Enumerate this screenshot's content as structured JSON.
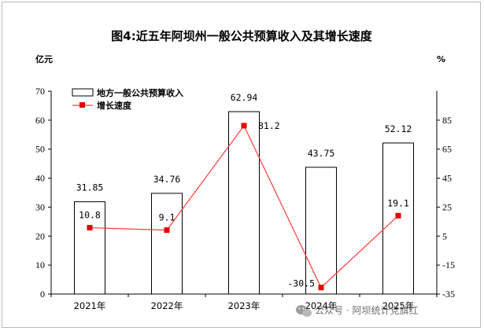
{
  "chart_data": {
    "type": "bar+line",
    "title": "图4:近五年阿坝州一般公共预算收入及其增长速度",
    "left_axis_unit": "亿元",
    "right_axis_unit": "%",
    "categories": [
      "2021年",
      "2022年",
      "2023年",
      "2024年",
      "2025年"
    ],
    "left_ylim": [
      0,
      70
    ],
    "left_ticks": [
      0,
      10,
      20,
      30,
      40,
      50,
      60,
      70
    ],
    "right_ylim": [
      -35,
      105
    ],
    "right_ticks": [
      -35,
      -15,
      5,
      25,
      45,
      65,
      85
    ],
    "grid": false,
    "legend_position": "top-left",
    "series": [
      {
        "name": "地方一般公共预算收入",
        "type": "bar",
        "axis": "left",
        "values": [
          31.85,
          34.76,
          62.94,
          43.75,
          52.12
        ],
        "labels": [
          "31.85",
          "34.76",
          "62.94",
          "43.75",
          "52.12"
        ],
        "fill": "#ffffff",
        "stroke": "#000000"
      },
      {
        "name": "增长速度",
        "type": "line",
        "axis": "right",
        "values": [
          10.8,
          9.1,
          81.2,
          -30.5,
          19.1
        ],
        "labels": [
          "10.8",
          "9.1",
          "81.2",
          "-30.5",
          "19.1"
        ],
        "color": "#ff3b3b",
        "marker_color": "#e60000"
      }
    ]
  },
  "watermark": {
    "text": "公众号 · 阿坝统计党旗红",
    "icon": "wechat-icon"
  }
}
